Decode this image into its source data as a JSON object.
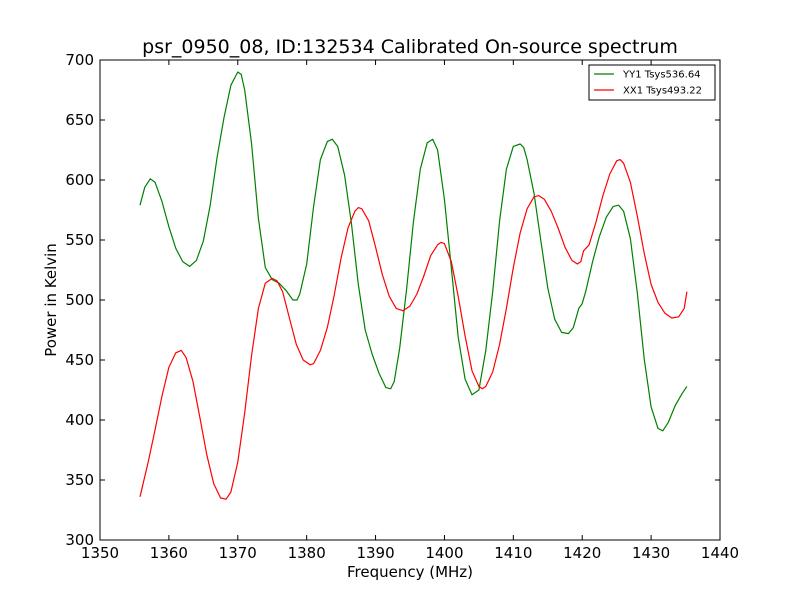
{
  "chart_data": {
    "type": "line",
    "title": "psr_0950_08, ID:132534 Calibrated On-source spectrum",
    "xlabel": "Frequency (MHz)",
    "ylabel": "Power in Kelvin",
    "xlim": [
      1350,
      1440
    ],
    "ylim": [
      300,
      700
    ],
    "xticks": [
      1350,
      1360,
      1370,
      1380,
      1390,
      1400,
      1410,
      1420,
      1430,
      1440
    ],
    "yticks": [
      300,
      350,
      400,
      450,
      500,
      550,
      600,
      650,
      700
    ],
    "grid": false,
    "legend_position": "top-right",
    "series": [
      {
        "name": "YY1 Tsys536.64",
        "color": "#008000",
        "x": [
          1355.8,
          1356.5,
          1357.3,
          1358.0,
          1359.0,
          1360.0,
          1361.0,
          1362.0,
          1363.0,
          1364.0,
          1365.0,
          1366.0,
          1367.0,
          1368.0,
          1369.0,
          1370.0,
          1370.5,
          1371.0,
          1372.0,
          1373.0,
          1374.0,
          1375.0,
          1376.0,
          1377.0,
          1378.0,
          1378.6,
          1379.0,
          1380.0,
          1381.0,
          1382.0,
          1383.0,
          1383.7,
          1384.5,
          1385.5,
          1386.5,
          1387.5,
          1388.5,
          1389.5,
          1390.5,
          1391.5,
          1392.2,
          1392.7,
          1393.5,
          1394.5,
          1395.5,
          1396.5,
          1397.5,
          1398.3,
          1399.0,
          1400.0,
          1401.0,
          1402.0,
          1403.0,
          1404.0,
          1405.0,
          1406.0,
          1407.0,
          1408.0,
          1409.0,
          1410.0,
          1411.0,
          1411.5,
          1412.0,
          1413.0,
          1414.0,
          1415.0,
          1416.0,
          1417.0,
          1418.0,
          1418.7,
          1419.5,
          1420.0,
          1420.5,
          1421.5,
          1422.5,
          1423.5,
          1424.5,
          1425.3,
          1426.0,
          1427.0,
          1428.0,
          1429.0,
          1430.0,
          1431.0,
          1431.7,
          1432.5,
          1433.5,
          1434.5,
          1435.2
        ],
        "y": [
          579,
          594,
          601,
          598,
          582,
          561,
          543,
          532,
          528,
          533,
          549,
          579,
          619,
          652,
          679,
          690,
          688,
          675,
          630,
          568,
          527,
          517,
          514,
          508,
          500,
          500,
          505,
          530,
          578,
          617,
          632,
          634,
          628,
          604,
          564,
          513,
          475,
          455,
          439,
          427,
          426,
          432,
          460,
          509,
          565,
          609,
          631,
          634,
          625,
          584,
          527,
          469,
          434,
          421,
          425,
          458,
          507,
          566,
          609,
          628,
          630,
          627,
          617,
          589,
          549,
          510,
          484,
          473,
          472,
          477,
          493,
          497,
          507,
          532,
          553,
          569,
          578,
          579,
          574,
          551,
          506,
          451,
          411,
          393,
          391,
          398,
          412,
          422,
          428
        ]
      },
      {
        "name": "XX1 Tsys493.22",
        "color": "#ff0000",
        "x": [
          1355.8,
          1357.0,
          1358.0,
          1359.0,
          1360.0,
          1361.0,
          1361.8,
          1362.5,
          1363.5,
          1364.5,
          1365.5,
          1366.5,
          1367.5,
          1368.3,
          1369.0,
          1370.0,
          1371.0,
          1372.0,
          1373.0,
          1374.0,
          1375.0,
          1375.7,
          1376.5,
          1377.5,
          1378.5,
          1379.5,
          1380.5,
          1381.0,
          1382.0,
          1383.0,
          1384.0,
          1385.0,
          1386.0,
          1387.0,
          1387.5,
          1388.0,
          1389.0,
          1390.0,
          1391.0,
          1392.0,
          1393.0,
          1394.0,
          1395.0,
          1396.0,
          1397.0,
          1398.0,
          1399.0,
          1399.5,
          1400.0,
          1401.0,
          1402.0,
          1403.0,
          1404.0,
          1405.0,
          1405.5,
          1406.0,
          1407.0,
          1408.0,
          1409.0,
          1410.0,
          1411.0,
          1412.0,
          1413.0,
          1413.7,
          1414.5,
          1415.5,
          1416.5,
          1417.5,
          1418.5,
          1419.3,
          1419.8,
          1420.2,
          1421.0,
          1422.0,
          1423.0,
          1424.0,
          1425.0,
          1425.5,
          1426.0,
          1427.0,
          1428.0,
          1429.0,
          1430.0,
          1431.0,
          1432.0,
          1433.0,
          1434.0,
          1434.8,
          1435.2
        ],
        "y": [
          336,
          365,
          392,
          420,
          444,
          456,
          458,
          452,
          432,
          402,
          371,
          347,
          335,
          334,
          340,
          365,
          406,
          454,
          493,
          514,
          518,
          516,
          507,
          485,
          463,
          450,
          446,
          447,
          458,
          477,
          504,
          535,
          560,
          574,
          577,
          576,
          566,
          544,
          521,
          503,
          493,
          491,
          495,
          505,
          520,
          537,
          546,
          548,
          547,
          532,
          503,
          470,
          441,
          428,
          426,
          428,
          440,
          463,
          493,
          527,
          556,
          576,
          586,
          587,
          584,
          574,
          560,
          544,
          533,
          530,
          532,
          541,
          546,
          565,
          587,
          605,
          616,
          617,
          614,
          598,
          570,
          539,
          513,
          498,
          489,
          485,
          486,
          493,
          507
        ]
      }
    ]
  }
}
